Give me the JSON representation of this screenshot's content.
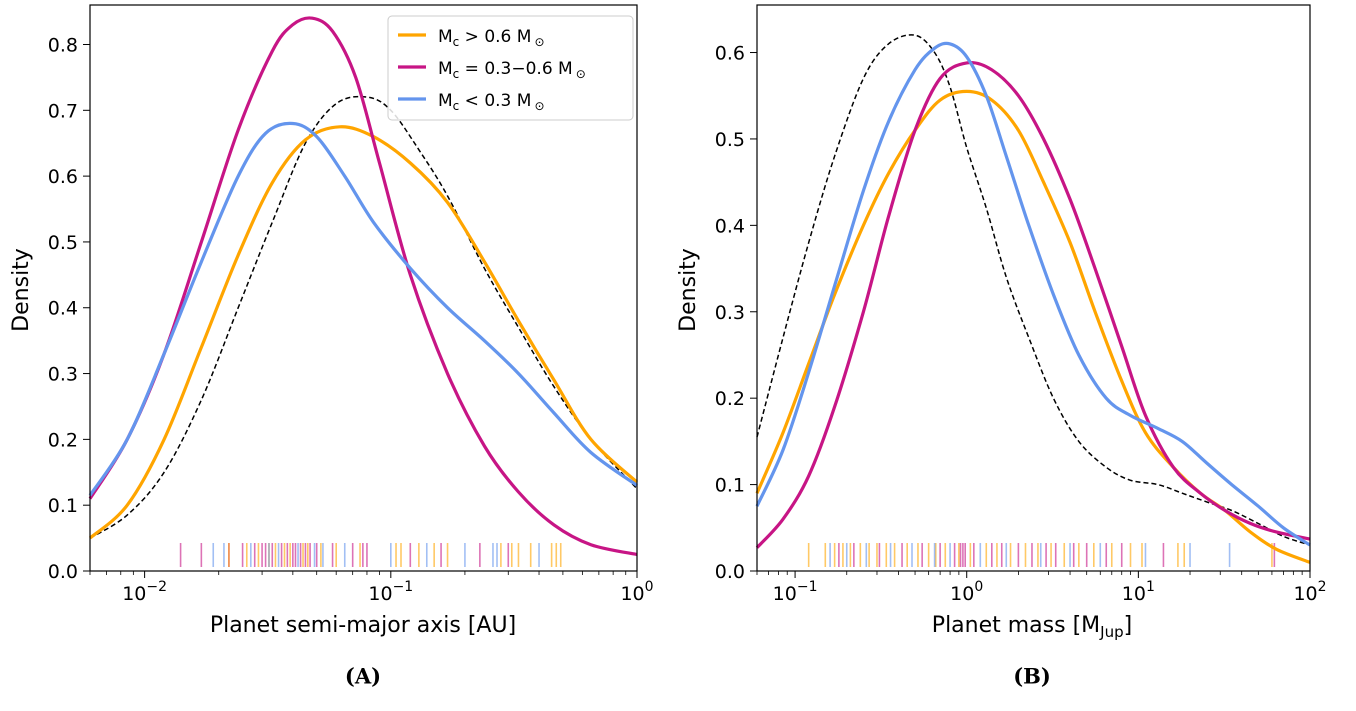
{
  "colors": {
    "orange": "#ffa500",
    "magenta": "#c71585",
    "blue": "#6495ed",
    "dashed": "#000000"
  },
  "legend": {
    "entries": [
      {
        "series": "orange",
        "label": "M_c > 0.6 M_⊙",
        "main": "M",
        "sub": "c",
        "mid": " > 0.6 M",
        "sun": "⊙"
      },
      {
        "series": "magenta",
        "label": "M_c = 0.3−0.6 M_⊙",
        "main": "M",
        "sub": "c",
        "mid": " = 0.3−0.6 M",
        "sun": "⊙"
      },
      {
        "series": "blue",
        "label": "M_c < 0.3 M_⊙",
        "main": "M",
        "sub": "c",
        "mid": " < 0.3 M",
        "sun": "⊙"
      }
    ],
    "location": "upper-right of panel A"
  },
  "panels": {
    "a": {
      "caption": "(A)"
    },
    "b": {
      "caption": "(B)"
    }
  },
  "chart_data": [
    {
      "type": "line",
      "panel": "A",
      "title": "",
      "xlabel": "Planet semi-major axis [AU]",
      "ylabel": "Density",
      "xscale": "log",
      "xlim": [
        0.006,
        1.0
      ],
      "ylim": [
        0,
        0.86
      ],
      "x_ticks": [
        {
          "value": 0.01,
          "base": "10",
          "exp": "−2"
        },
        {
          "value": 0.1,
          "base": "10",
          "exp": "−1"
        },
        {
          "value": 1,
          "base": "10",
          "exp": "0"
        }
      ],
      "y_ticks": [
        "0.0",
        "0.1",
        "0.2",
        "0.3",
        "0.4",
        "0.5",
        "0.6",
        "0.7",
        "0.8"
      ],
      "grid": false,
      "series": [
        {
          "name": "M_c > 0.6 M_⊙",
          "color": "orange",
          "style": "solid",
          "x": [
            0.006,
            0.0085,
            0.012,
            0.017,
            0.024,
            0.033,
            0.045,
            0.062,
            0.085,
            0.12,
            0.17,
            0.24,
            0.33,
            0.46,
            0.65,
            1.0
          ],
          "y": [
            0.05,
            0.1,
            0.2,
            0.34,
            0.48,
            0.59,
            0.655,
            0.675,
            0.66,
            0.62,
            0.56,
            0.47,
            0.38,
            0.29,
            0.2,
            0.135
          ]
        },
        {
          "name": "M_c = 0.3−0.6 M_⊙",
          "color": "magenta",
          "style": "solid",
          "x": [
            0.006,
            0.0085,
            0.012,
            0.017,
            0.024,
            0.033,
            0.04,
            0.048,
            0.058,
            0.072,
            0.09,
            0.12,
            0.17,
            0.24,
            0.33,
            0.46,
            0.65,
            1.0
          ],
          "y": [
            0.11,
            0.2,
            0.33,
            0.5,
            0.67,
            0.79,
            0.83,
            0.84,
            0.82,
            0.75,
            0.62,
            0.45,
            0.3,
            0.19,
            0.12,
            0.07,
            0.04,
            0.025
          ]
        },
        {
          "name": "M_c < 0.3 M_⊙",
          "color": "blue",
          "style": "solid",
          "x": [
            0.006,
            0.0085,
            0.012,
            0.017,
            0.024,
            0.031,
            0.04,
            0.05,
            0.065,
            0.085,
            0.12,
            0.17,
            0.24,
            0.33,
            0.46,
            0.65,
            1.0
          ],
          "y": [
            0.115,
            0.2,
            0.33,
            0.47,
            0.6,
            0.665,
            0.68,
            0.66,
            0.6,
            0.53,
            0.46,
            0.4,
            0.35,
            0.3,
            0.24,
            0.18,
            0.13
          ]
        },
        {
          "name": "",
          "color": "dashed",
          "style": "dashed",
          "x": [
            0.006,
            0.0085,
            0.012,
            0.017,
            0.024,
            0.033,
            0.045,
            0.06,
            0.08,
            0.1,
            0.13,
            0.17,
            0.24,
            0.33,
            0.46,
            0.65,
            1.0
          ],
          "y": [
            0.05,
            0.085,
            0.15,
            0.26,
            0.4,
            0.53,
            0.65,
            0.71,
            0.72,
            0.7,
            0.64,
            0.57,
            0.46,
            0.37,
            0.28,
            0.2,
            0.125
          ]
        }
      ],
      "rugs": [
        {
          "color": "magenta",
          "x": [
            0.014,
            0.017,
            0.022,
            0.025,
            0.028,
            0.03,
            0.031,
            0.033,
            0.036,
            0.038,
            0.04,
            0.041,
            0.043,
            0.045,
            0.047,
            0.05,
            0.058,
            0.07,
            0.077,
            0.08,
            0.12,
            0.16,
            0.23,
            0.3
          ]
        },
        {
          "color": "orange",
          "x": [
            0.022,
            0.026,
            0.029,
            0.032,
            0.034,
            0.037,
            0.039,
            0.044,
            0.046,
            0.052,
            0.06,
            0.075,
            0.105,
            0.11,
            0.13,
            0.15,
            0.17,
            0.28,
            0.31,
            0.33,
            0.37,
            0.45,
            0.47,
            0.49
          ]
        },
        {
          "color": "blue",
          "x": [
            0.019,
            0.021,
            0.027,
            0.032,
            0.035,
            0.042,
            0.049,
            0.053,
            0.065,
            0.1,
            0.14,
            0.2,
            0.26,
            0.27,
            0.4
          ]
        }
      ]
    },
    {
      "type": "line",
      "panel": "B",
      "title": "",
      "xlabel": "Planet mass [M_Jup]",
      "ylabel": "Density",
      "xscale": "log",
      "xlim": [
        0.06,
        100
      ],
      "ylim": [
        0,
        0.655
      ],
      "x_ticks": [
        {
          "value": 0.1,
          "base": "10",
          "exp": "−1"
        },
        {
          "value": 1,
          "base": "10",
          "exp": "0"
        },
        {
          "value": 10,
          "base": "10",
          "exp": "1"
        },
        {
          "value": 100,
          "base": "10",
          "exp": "2"
        }
      ],
      "y_ticks": [
        "0.0",
        "0.1",
        "0.2",
        "0.3",
        "0.4",
        "0.5",
        "0.6"
      ],
      "grid": false,
      "series": [
        {
          "name": "M_c > 0.6 M_⊙",
          "color": "orange",
          "style": "solid",
          "x": [
            0.06,
            0.085,
            0.12,
            0.17,
            0.25,
            0.35,
            0.5,
            0.7,
            1.0,
            1.4,
            2.0,
            2.8,
            4.0,
            5.6,
            8,
            11,
            16,
            23,
            32,
            45,
            64,
            100
          ],
          "y": [
            0.09,
            0.16,
            0.24,
            0.32,
            0.4,
            0.46,
            0.51,
            0.545,
            0.555,
            0.545,
            0.51,
            0.45,
            0.38,
            0.3,
            0.22,
            0.16,
            0.12,
            0.09,
            0.07,
            0.045,
            0.025,
            0.01
          ]
        },
        {
          "name": "M_c = 0.3−0.6 M_⊙",
          "color": "magenta",
          "style": "solid",
          "x": [
            0.06,
            0.085,
            0.12,
            0.17,
            0.25,
            0.35,
            0.5,
            0.7,
            1.0,
            1.4,
            2.0,
            2.8,
            4.0,
            5.6,
            8,
            11,
            16,
            23,
            32,
            45,
            64,
            100
          ],
          "y": [
            0.027,
            0.06,
            0.11,
            0.19,
            0.3,
            0.41,
            0.51,
            0.57,
            0.588,
            0.58,
            0.55,
            0.5,
            0.43,
            0.35,
            0.26,
            0.18,
            0.12,
            0.09,
            0.07,
            0.055,
            0.045,
            0.037
          ]
        },
        {
          "name": "M_c < 0.3 M_⊙",
          "color": "blue",
          "style": "solid",
          "x": [
            0.06,
            0.085,
            0.12,
            0.17,
            0.25,
            0.35,
            0.5,
            0.65,
            0.8,
            1.0,
            1.3,
            1.7,
            2.3,
            3.2,
            4.5,
            6.5,
            9,
            13,
            18,
            25,
            35,
            50,
            70,
            100
          ],
          "y": [
            0.075,
            0.14,
            0.23,
            0.33,
            0.44,
            0.52,
            0.58,
            0.605,
            0.61,
            0.595,
            0.55,
            0.48,
            0.4,
            0.32,
            0.25,
            0.2,
            0.18,
            0.165,
            0.15,
            0.125,
            0.1,
            0.075,
            0.05,
            0.03
          ]
        },
        {
          "name": "",
          "color": "dashed",
          "style": "dashed",
          "x": [
            0.06,
            0.085,
            0.12,
            0.17,
            0.25,
            0.35,
            0.5,
            0.65,
            0.8,
            1.0,
            1.3,
            1.7,
            2.3,
            3.2,
            4.5,
            6.5,
            9,
            13,
            18,
            25,
            35,
            50,
            70,
            100
          ],
          "y": [
            0.155,
            0.27,
            0.38,
            0.48,
            0.57,
            0.61,
            0.62,
            0.6,
            0.56,
            0.49,
            0.42,
            0.34,
            0.27,
            0.2,
            0.15,
            0.12,
            0.105,
            0.1,
            0.09,
            0.08,
            0.07,
            0.055,
            0.04,
            0.03
          ]
        }
      ],
      "rugs": [
        {
          "color": "orange",
          "x": [
            0.12,
            0.15,
            0.17,
            0.19,
            0.21,
            0.24,
            0.27,
            0.3,
            0.34,
            0.38,
            0.45,
            0.52,
            0.6,
            0.66,
            0.75,
            0.9,
            1.05,
            1.3,
            1.5,
            1.8,
            2.2,
            2.6,
            3.1,
            3.7,
            4.5,
            5.5,
            7,
            9,
            10.5,
            17,
            18.5,
            60
          ]
        },
        {
          "color": "magenta",
          "x": [
            0.18,
            0.22,
            0.31,
            0.42,
            0.55,
            0.7,
            0.85,
            0.92,
            0.95,
            0.98,
            1.1,
            1.4,
            1.6,
            2.0,
            2.4,
            2.9,
            3.3,
            4.2,
            5.0,
            6.5,
            8,
            14,
            62
          ]
        },
        {
          "color": "blue",
          "x": [
            0.16,
            0.2,
            0.26,
            0.36,
            0.48,
            0.65,
            0.8,
            1.2,
            1.7,
            2.7,
            4,
            6,
            11,
            20,
            34
          ]
        }
      ]
    }
  ]
}
